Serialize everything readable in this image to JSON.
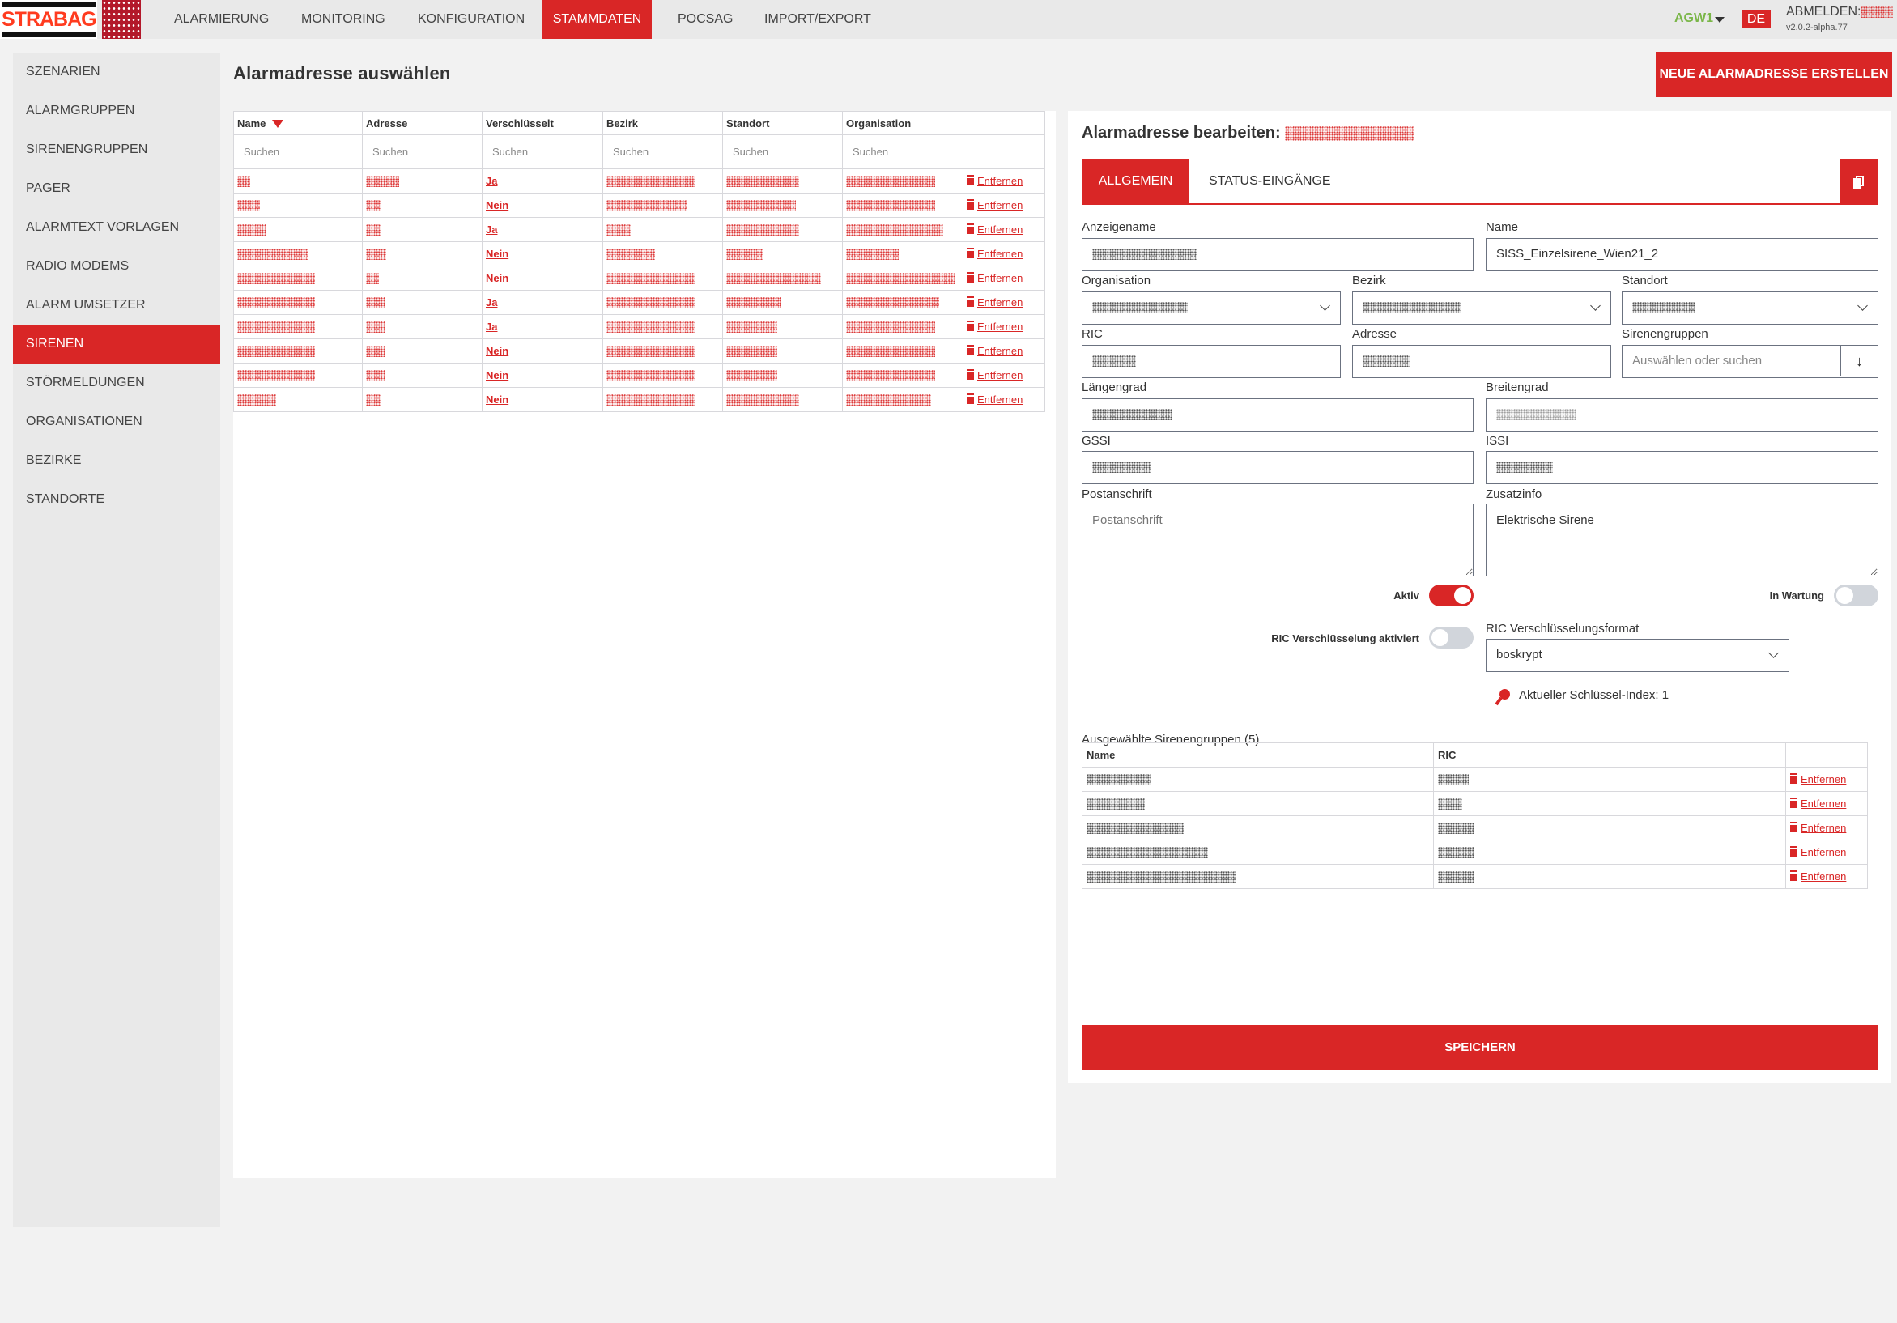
{
  "topbar": {
    "logo_text": "STRABAG",
    "nav": [
      {
        "label": "ALARMIERUNG",
        "active": false
      },
      {
        "label": "MONITORING",
        "active": false
      },
      {
        "label": "KONFIGURATION",
        "active": false
      },
      {
        "label": "STAMMDATEN",
        "active": true
      },
      {
        "label": "POCSAG",
        "active": false
      },
      {
        "label": "IMPORT/EXPORT",
        "active": false
      }
    ],
    "gateway": "AGW1",
    "language": "DE",
    "logout_label": "ABMELDEN:",
    "version": "v2.0.2-alpha.77"
  },
  "sidebar": {
    "items": [
      {
        "label": "SZENARIEN"
      },
      {
        "label": "ALARMGRUPPEN"
      },
      {
        "label": "SIRENENGRUPPEN"
      },
      {
        "label": "PAGER"
      },
      {
        "label": "ALARMTEXT VORLAGEN"
      },
      {
        "label": "RADIO MODEMS"
      },
      {
        "label": "ALARM UMSETZER"
      },
      {
        "label": "SIRENEN",
        "active": true
      },
      {
        "label": "STÖRMELDUNGEN"
      },
      {
        "label": "ORGANISATIONEN"
      },
      {
        "label": "BEZIRKE"
      },
      {
        "label": "STANDORTE"
      }
    ]
  },
  "list": {
    "title": "Alarmadresse auswählen",
    "new_button": "NEUE ALARMADRESSE ERSTELLEN",
    "columns": [
      "Name",
      "Adresse",
      "Verschlüsselt",
      "Bezirk",
      "Standort",
      "Organisation"
    ],
    "search_placeholder": "Suchen",
    "remove_label": "Entfernen",
    "rows": [
      {
        "encrypted": "Ja"
      },
      {
        "encrypted": "Nein"
      },
      {
        "encrypted": "Ja"
      },
      {
        "encrypted": "Nein"
      },
      {
        "encrypted": "Nein"
      },
      {
        "encrypted": "Ja"
      },
      {
        "encrypted": "Ja"
      },
      {
        "encrypted": "Nein"
      },
      {
        "encrypted": "Nein"
      },
      {
        "encrypted": "Nein"
      }
    ]
  },
  "editor": {
    "title": "Alarmadresse bearbeiten:",
    "tabs": [
      {
        "label": "ALLGEMEIN",
        "active": true
      },
      {
        "label": "STATUS-EINGÄNGE",
        "active": false
      }
    ],
    "fields": {
      "anzeigename": {
        "label": "Anzeigename"
      },
      "name": {
        "label": "Name",
        "value": "SISS_Einzelsirene_Wien21_2"
      },
      "organisation": {
        "label": "Organisation"
      },
      "bezirk": {
        "label": "Bezirk"
      },
      "standort": {
        "label": "Standort"
      },
      "ric": {
        "label": "RIC"
      },
      "adresse": {
        "label": "Adresse"
      },
      "sirenengruppen": {
        "label": "Sirenengruppen",
        "placeholder": "Auswählen oder suchen"
      },
      "laengengrad": {
        "label": "Längengrad"
      },
      "breitengrad": {
        "label": "Breitengrad"
      },
      "gssi": {
        "label": "GSSI"
      },
      "issi": {
        "label": "ISSI"
      },
      "postanschrift": {
        "label": "Postanschrift",
        "placeholder": "Postanschrift"
      },
      "zusatzinfo": {
        "label": "Zusatzinfo",
        "value": "Elektrische Sirene"
      }
    },
    "toggles": {
      "aktiv": {
        "label": "Aktiv",
        "on": true
      },
      "in_wartung": {
        "label": "In Wartung",
        "on": false
      },
      "ric_encryption": {
        "label": "RIC Verschlüsselung aktiviert",
        "on": false
      }
    },
    "ric_format": {
      "label": "RIC Verschlüsselungsformat",
      "value": "boskrypt"
    },
    "key_index": "Aktueller Schlüssel-Index: 1",
    "groups": {
      "title": "Ausgewählte Sirenengruppen (5)",
      "columns": [
        "Name",
        "RIC"
      ],
      "row_count": 5,
      "remove_label": "Entfernen"
    },
    "save_button": "SPEICHERN"
  },
  "colors": {
    "accent": "#d92626",
    "gateway": "#7ab648",
    "background": "#f2f2f2"
  }
}
